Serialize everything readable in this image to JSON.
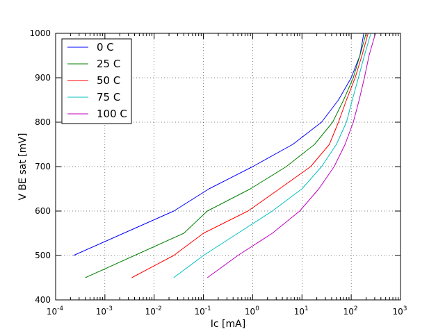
{
  "chart_data": {
    "type": "line",
    "title": "",
    "xlabel": "Ic [mA]",
    "ylabel": "V BE sat [mV]",
    "xscale": "log",
    "xlim": [
      0.0001,
      1000
    ],
    "ylim": [
      400,
      1000
    ],
    "grid": true,
    "legend_position": "top-left",
    "x_ticks": [
      {
        "base": "10",
        "exp": "-4"
      },
      {
        "base": "10",
        "exp": "-3"
      },
      {
        "base": "10",
        "exp": "-2"
      },
      {
        "base": "10",
        "exp": "-1"
      },
      {
        "base": "10",
        "exp": "0"
      },
      {
        "base": "10",
        "exp": "1"
      },
      {
        "base": "10",
        "exp": "2"
      },
      {
        "base": "10",
        "exp": "3"
      }
    ],
    "y_ticks": [
      "400",
      "500",
      "600",
      "700",
      "800",
      "900",
      "1000"
    ],
    "series": [
      {
        "name": "0 C",
        "color": "#0000ff",
        "points": [
          [
            0.00023,
            500
          ],
          [
            0.0024,
            550
          ],
          [
            0.025,
            600
          ],
          [
            0.13,
            650
          ],
          [
            1.0,
            700
          ],
          [
            6.5,
            750
          ],
          [
            25,
            800
          ],
          [
            55,
            850
          ],
          [
            100,
            900
          ],
          [
            150,
            950
          ],
          [
            180,
            1000
          ]
        ]
      },
      {
        "name": "25 C",
        "color": "#008000",
        "points": [
          [
            0.0004,
            450
          ],
          [
            0.004,
            500
          ],
          [
            0.04,
            550
          ],
          [
            0.12,
            600
          ],
          [
            0.9,
            650
          ],
          [
            4.8,
            700
          ],
          [
            18,
            750
          ],
          [
            42,
            800
          ],
          [
            70,
            850
          ],
          [
            110,
            900
          ],
          [
            150,
            950
          ],
          [
            200,
            1000
          ]
        ]
      },
      {
        "name": "50 C",
        "color": "#ff0000",
        "points": [
          [
            0.0035,
            450
          ],
          [
            0.025,
            500
          ],
          [
            0.1,
            550
          ],
          [
            0.8,
            600
          ],
          [
            3.5,
            650
          ],
          [
            15,
            700
          ],
          [
            36,
            750
          ],
          [
            55,
            800
          ],
          [
            80,
            850
          ],
          [
            120,
            900
          ],
          [
            165,
            950
          ],
          [
            220,
            1000
          ]
        ]
      },
      {
        "name": "75 C",
        "color": "#00bfbf",
        "points": [
          [
            0.025,
            450
          ],
          [
            0.1,
            500
          ],
          [
            0.5,
            550
          ],
          [
            2.5,
            600
          ],
          [
            10,
            650
          ],
          [
            25,
            700
          ],
          [
            50,
            750
          ],
          [
            80,
            800
          ],
          [
            105,
            850
          ],
          [
            140,
            900
          ],
          [
            185,
            950
          ],
          [
            250,
            1000
          ]
        ]
      },
      {
        "name": "100 C",
        "color": "#bf00bf",
        "points": [
          [
            0.12,
            450
          ],
          [
            0.5,
            500
          ],
          [
            2.5,
            550
          ],
          [
            9,
            600
          ],
          [
            22,
            650
          ],
          [
            45,
            700
          ],
          [
            75,
            750
          ],
          [
            110,
            800
          ],
          [
            145,
            850
          ],
          [
            185,
            900
          ],
          [
            230,
            950
          ],
          [
            310,
            1000
          ]
        ]
      }
    ]
  }
}
